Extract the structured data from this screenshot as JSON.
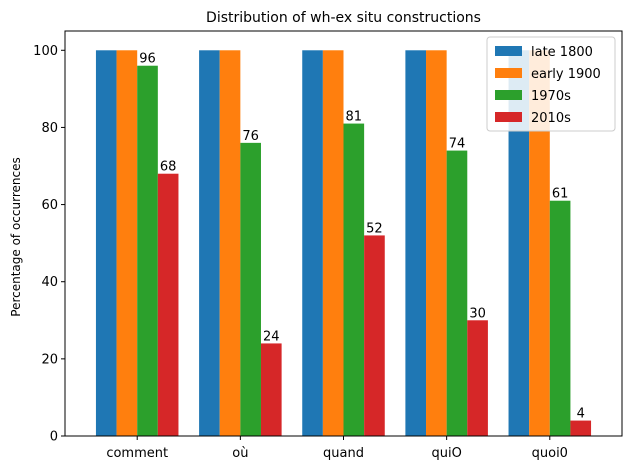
{
  "chart_data": {
    "type": "bar",
    "title": "Distribution of wh-ex situ constructions",
    "xlabel": "",
    "ylabel": "Percentage of occurrences",
    "categories": [
      "comment",
      "où",
      "quand",
      "quiO",
      "quoi0"
    ],
    "series": [
      {
        "name": "late 1800",
        "color": "#1f77b4",
        "values": [
          100,
          100,
          100,
          100,
          100
        ],
        "labels": [
          "",
          "",
          "",
          "",
          ""
        ]
      },
      {
        "name": "early 1900",
        "color": "#ff7f0e",
        "values": [
          100,
          100,
          100,
          100,
          100
        ],
        "labels": [
          "",
          "",
          "",
          "",
          ""
        ]
      },
      {
        "name": "1970s",
        "color": "#2ca02c",
        "values": [
          96,
          76,
          81,
          74,
          61
        ],
        "labels": [
          "96",
          "76",
          "81",
          "74",
          "61"
        ]
      },
      {
        "name": "2010s",
        "color": "#d62728",
        "values": [
          68,
          24,
          52,
          30,
          4
        ],
        "labels": [
          "68",
          "24",
          "52",
          "30",
          "4"
        ]
      }
    ],
    "ylim": [
      0,
      105
    ],
    "yticks": [
      0,
      20,
      40,
      60,
      80,
      100
    ],
    "grid": false,
    "legend_position": "top-right"
  }
}
